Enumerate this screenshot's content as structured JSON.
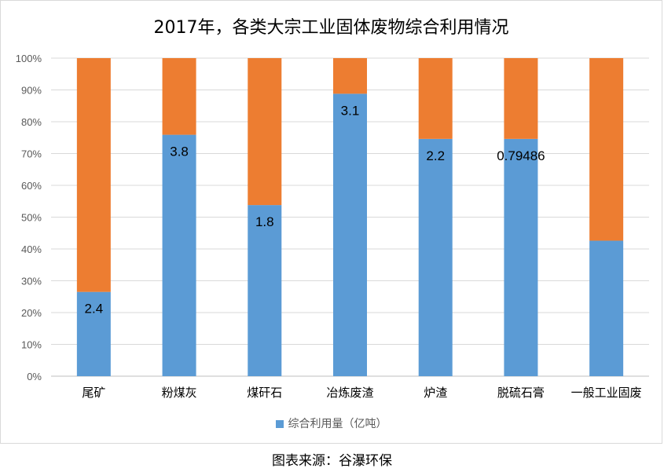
{
  "chart_data": {
    "type": "bar",
    "stacked": true,
    "normalized": true,
    "title": "2017年，各类大宗工业固体废物综合利用情况",
    "categories": [
      "尾矿",
      "粉煤灰",
      "煤矸石",
      "冶炼废渣",
      "炉渣",
      "脱硫石膏",
      "一般工业固废"
    ],
    "series": [
      {
        "name": "综合利用量（亿吨）",
        "color": "#5b9bd5",
        "values_pct": [
          26.5,
          75.9,
          53.8,
          88.8,
          74.6,
          74.6,
          42.6
        ],
        "data_labels": [
          "2.4",
          "3.8",
          "1.8",
          "3.1",
          "2.2",
          "0.79486",
          ""
        ]
      },
      {
        "name": "",
        "color": "#ed7d31",
        "values_pct": [
          73.5,
          24.1,
          46.2,
          11.2,
          25.4,
          25.4,
          57.4
        ]
      }
    ],
    "y_ticks": [
      "0%",
      "10%",
      "20%",
      "30%",
      "40%",
      "50%",
      "60%",
      "70%",
      "80%",
      "90%",
      "100%"
    ],
    "ylim": [
      0,
      100
    ],
    "grid": true,
    "legend_position": "bottom"
  },
  "source_note": "图表来源：谷瀑环保"
}
